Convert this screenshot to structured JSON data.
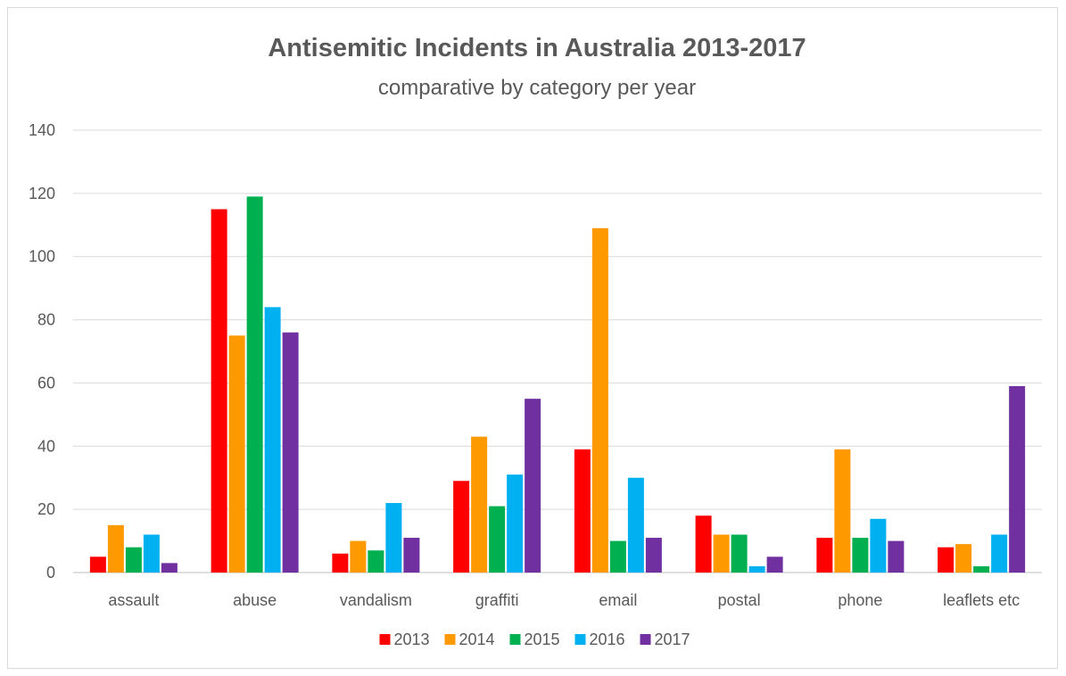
{
  "chart_data": {
    "type": "bar",
    "title": "Antisemitic Incidents in Australia 2013-2017",
    "subtitle": "comparative by category per year",
    "xlabel": "",
    "ylabel": "",
    "ylim": [
      0,
      140
    ],
    "yticks": [
      0,
      20,
      40,
      60,
      80,
      100,
      120,
      140
    ],
    "grid": true,
    "legend_position": "bottom",
    "categories": [
      "assault",
      "abuse",
      "vandalism",
      "graffiti",
      "email",
      "postal",
      "phone",
      "leaflets etc"
    ],
    "series": [
      {
        "name": "2013",
        "color": "#ff0000",
        "values": [
          5,
          115,
          6,
          29,
          39,
          18,
          11,
          8
        ]
      },
      {
        "name": "2014",
        "color": "#ff9900",
        "values": [
          15,
          75,
          10,
          43,
          109,
          12,
          39,
          9
        ]
      },
      {
        "name": "2015",
        "color": "#00b050",
        "values": [
          8,
          119,
          7,
          21,
          10,
          12,
          11,
          2
        ]
      },
      {
        "name": "2016",
        "color": "#00b0f0",
        "values": [
          12,
          84,
          22,
          31,
          30,
          2,
          17,
          12
        ]
      },
      {
        "name": "2017",
        "color": "#7030a0",
        "values": [
          3,
          76,
          11,
          55,
          11,
          5,
          10,
          59
        ]
      }
    ]
  }
}
